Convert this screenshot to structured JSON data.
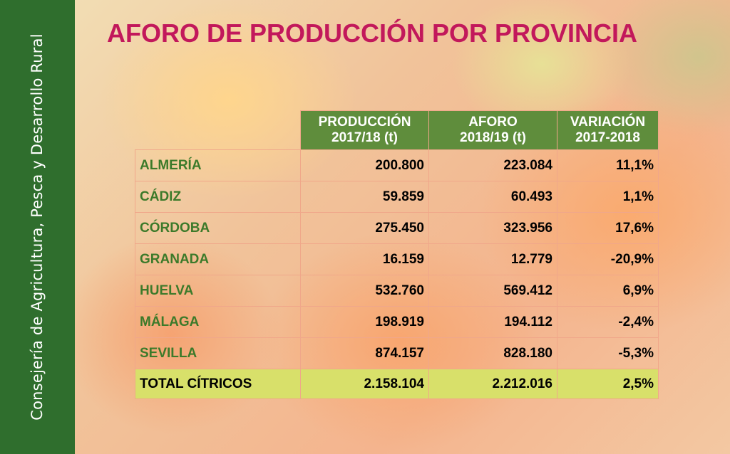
{
  "sidebar": {
    "text": "Consejería de Agricultura, Pesca y Desarrollo Rural"
  },
  "title": "AFORO DE PRODUCCIÓN POR PROVINCIA",
  "table": {
    "headers": [
      {
        "line1": "PRODUCCIÓN",
        "line2": "2017/18 (t)"
      },
      {
        "line1": "AFORO",
        "line2": "2018/19 (t)"
      },
      {
        "line1": "VARIACIÓN",
        "line2": "2017-2018"
      }
    ],
    "rows": [
      {
        "provincia": "ALMERÍA",
        "produccion": "200.800",
        "aforo": "223.084",
        "variacion": "11,1%"
      },
      {
        "provincia": "CÁDIZ",
        "produccion": "59.859",
        "aforo": "60.493",
        "variacion": "1,1%"
      },
      {
        "provincia": "CÓRDOBA",
        "produccion": "275.450",
        "aforo": "323.956",
        "variacion": "17,6%"
      },
      {
        "provincia": "GRANADA",
        "produccion": "16.159",
        "aforo": "12.779",
        "variacion": "-20,9%"
      },
      {
        "provincia": "HUELVA",
        "produccion": "532.760",
        "aforo": "569.412",
        "variacion": "6,9%"
      },
      {
        "provincia": "MÁLAGA",
        "produccion": "198.919",
        "aforo": "194.112",
        "variacion": "-2,4%"
      },
      {
        "provincia": "SEVILLA",
        "produccion": "874.157",
        "aforo": "828.180",
        "variacion": "-5,3%"
      }
    ],
    "total": {
      "provincia": "TOTAL CÍTRICOS",
      "produccion": "2.158.104",
      "aforo": "2.212.016",
      "variacion": "2,5%"
    }
  },
  "colors": {
    "sidebar": "#2f6e2d",
    "title": "#c2185b",
    "header_bg": "#5f8d3c",
    "province_text": "#3c7a2a",
    "total_bg": "#d8e06a",
    "cell_border": "#f0a78a"
  }
}
